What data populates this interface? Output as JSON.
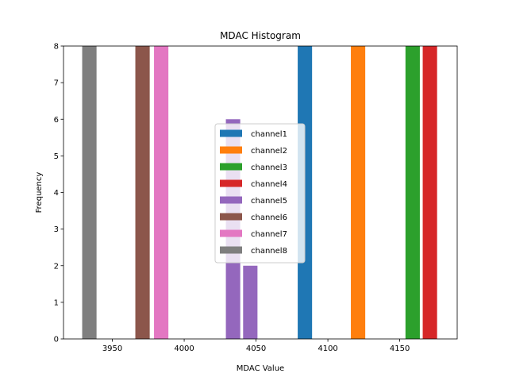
{
  "chart_data": {
    "type": "bar",
    "title": "MDAC Histogram",
    "xlabel": "MDAC Value",
    "ylabel": "Frequency",
    "xlim": [
      3916,
      4190
    ],
    "ylim": [
      0,
      8
    ],
    "xticks": [
      3950,
      4000,
      4050,
      4100,
      4150
    ],
    "yticks": [
      0,
      1,
      2,
      3,
      4,
      5,
      6,
      7,
      8
    ],
    "bar_width": 10,
    "legend": {
      "location": "center"
    },
    "grid": false,
    "series": [
      {
        "name": "channel1",
        "color": "#1f77b4",
        "bars": [
          {
            "x": 4084,
            "value": 8
          }
        ]
      },
      {
        "name": "channel2",
        "color": "#ff7f0e",
        "bars": [
          {
            "x": 4121,
            "value": 8
          }
        ]
      },
      {
        "name": "channel3",
        "color": "#2ca02c",
        "bars": [
          {
            "x": 4159,
            "value": 8
          }
        ]
      },
      {
        "name": "channel4",
        "color": "#d62728",
        "bars": [
          {
            "x": 4171,
            "value": 8
          }
        ]
      },
      {
        "name": "channel5",
        "color": "#9467bd",
        "bars": [
          {
            "x": 4034,
            "value": 6
          },
          {
            "x": 4046,
            "value": 2
          }
        ]
      },
      {
        "name": "channel6",
        "color": "#8c564b",
        "bars": [
          {
            "x": 3971,
            "value": 8
          }
        ]
      },
      {
        "name": "channel7",
        "color": "#e377c2",
        "bars": [
          {
            "x": 3984,
            "value": 8
          }
        ]
      },
      {
        "name": "channel8",
        "color": "#7f7f7f",
        "bars": [
          {
            "x": 3934,
            "value": 8
          }
        ]
      }
    ]
  }
}
